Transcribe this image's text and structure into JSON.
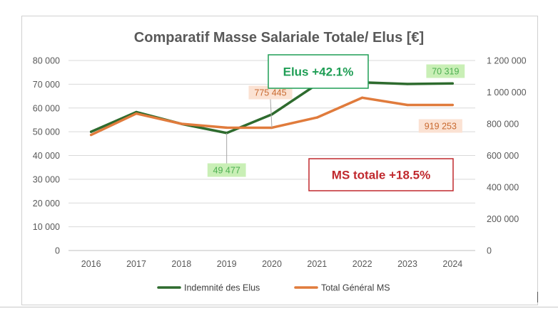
{
  "chart_data": {
    "type": "line",
    "title": "Comparatif Masse Salariale Totale/ Elus [€]",
    "categories": [
      "2016",
      "2017",
      "2018",
      "2019",
      "2020",
      "2021",
      "2022",
      "2023",
      "2024"
    ],
    "y_left": {
      "min": 0,
      "max": 80000,
      "ticks": [
        "0",
        "10 000",
        "20 000",
        "30 000",
        "40 000",
        "50 000",
        "60 000",
        "70 000",
        "80 000"
      ]
    },
    "y_right": {
      "min": 0,
      "max": 1200000,
      "ticks": [
        "0",
        "200 000",
        "400 000",
        "600 000",
        "800 000",
        "1 000 000",
        "1 200 000"
      ]
    },
    "series": [
      {
        "name": "Indemnité des Elus",
        "axis": "left",
        "color": "#2e6b2e",
        "values": [
          50000,
          58300,
          53300,
          49477,
          57300,
          70000,
          70800,
          70100,
          70319
        ]
      },
      {
        "name": "Total Général MS",
        "axis": "right",
        "color": "#e07b3c",
        "values": [
          730000,
          865000,
          800000,
          776000,
          775445,
          840000,
          965000,
          919253,
          919253
        ]
      }
    ],
    "legend_position": "bottom",
    "data_labels": [
      {
        "text": "775 445",
        "series": 1,
        "index": 4
      },
      {
        "text": "49 477",
        "series": 0,
        "index": 3
      },
      {
        "text": "70 319",
        "series": 0,
        "index": 8
      },
      {
        "text": "919 253",
        "series": 1,
        "index": 8
      }
    ],
    "annotations": [
      {
        "text": "Elus +42.1%",
        "color": "#1f9e55"
      },
      {
        "text": "MS totale +18.5%",
        "color": "#c0282d"
      }
    ]
  }
}
